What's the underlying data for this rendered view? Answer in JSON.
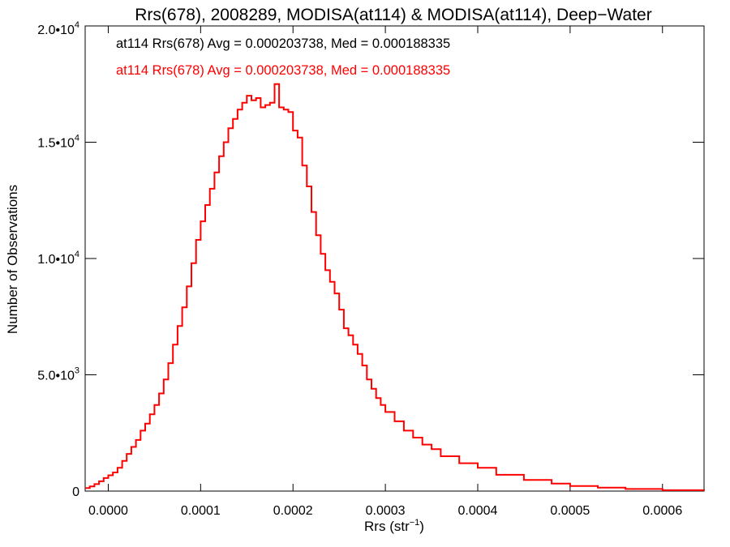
{
  "chart_data": {
    "type": "histogram",
    "title": "Rrs(678), 2008289, MODISA(at114) & MODISA(at114), Deep−Water",
    "xlabel": "Rrs (str",
    "xlabel_sup": "−1",
    "xlabel_close": ")",
    "ylabel": "Number of Observations",
    "xlim": [
      -2.5e-05,
      0.000645
    ],
    "ylim": [
      0,
      20000
    ],
    "x_ticks": [
      {
        "value": 0.0,
        "label": "0.0000"
      },
      {
        "value": 0.0001,
        "label": "0.0001"
      },
      {
        "value": 0.0002,
        "label": "0.0002"
      },
      {
        "value": 0.0003,
        "label": "0.0003"
      },
      {
        "value": 0.0004,
        "label": "0.0004"
      },
      {
        "value": 0.0005,
        "label": "0.0005"
      },
      {
        "value": 0.0006,
        "label": "0.0006"
      }
    ],
    "y_ticks": [
      {
        "value": 0,
        "mant": "0",
        "exp": ""
      },
      {
        "value": 5000,
        "mant": "5.0•10",
        "exp": "3"
      },
      {
        "value": 10000,
        "mant": "1.0•10",
        "exp": "4"
      },
      {
        "value": 15000,
        "mant": "1.5•10",
        "exp": "4"
      },
      {
        "value": 20000,
        "mant": "2.0•10",
        "exp": "4"
      }
    ],
    "legend": [
      {
        "text": "at114 Rrs(678) Avg = 0.000203738, Med = 0.000188335",
        "color": "#000000"
      },
      {
        "text": "at114 Rrs(678) Avg = 0.000203738, Med = 0.000188335",
        "color": "#ff0000"
      }
    ],
    "series": [
      {
        "color": "#ff0000",
        "x": [
          -2.5e-05,
          -2e-05,
          -1.5e-05,
          -1e-05,
          -5e-06,
          0.0,
          5e-06,
          1e-05,
          1.5e-05,
          2e-05,
          2.5e-05,
          3e-05,
          3.5e-05,
          4e-05,
          4.5e-05,
          5e-05,
          5.5e-05,
          6e-05,
          6.5e-05,
          7e-05,
          7.5e-05,
          8e-05,
          8.5e-05,
          9e-05,
          9.5e-05,
          0.0001,
          0.000105,
          0.00011,
          0.000115,
          0.00012,
          0.000125,
          0.00013,
          0.000135,
          0.00014,
          0.000145,
          0.00015,
          0.000155,
          0.00016,
          0.000165,
          0.00017,
          0.000175,
          0.00018,
          0.000185,
          0.00019,
          0.000195,
          0.0002,
          0.000205,
          0.00021,
          0.000215,
          0.00022,
          0.000225,
          0.00023,
          0.000235,
          0.00024,
          0.000245,
          0.00025,
          0.000255,
          0.00026,
          0.000265,
          0.00027,
          0.000275,
          0.00028,
          0.000285,
          0.00029,
          0.000295,
          0.0003,
          0.00031,
          0.00032,
          0.00033,
          0.00034,
          0.00035,
          0.00036,
          0.00038,
          0.0004,
          0.00042,
          0.00045,
          0.00048,
          0.0005,
          0.00053,
          0.00056,
          0.0006,
          0.000645
        ],
        "values": [
          130,
          200,
          300,
          420,
          560,
          680,
          800,
          1000,
          1300,
          1600,
          1900,
          2200,
          2600,
          2900,
          3300,
          3700,
          4200,
          4800,
          5500,
          6300,
          7100,
          7900,
          8800,
          9800,
          10800,
          11600,
          12300,
          13000,
          13700,
          14400,
          15000,
          15600,
          16000,
          16400,
          16700,
          17000,
          16800,
          16900,
          16500,
          16600,
          16700,
          17500,
          16500,
          16400,
          16300,
          15500,
          15200,
          14000,
          13100,
          12000,
          11000,
          10200,
          9500,
          9000,
          8500,
          7800,
          7000,
          6700,
          6300,
          5900,
          5400,
          4800,
          4400,
          4000,
          3700,
          3400,
          3000,
          2600,
          2300,
          2000,
          1800,
          1500,
          1200,
          1000,
          700,
          480,
          320,
          220,
          150,
          90,
          40,
          20
        ]
      }
    ]
  }
}
